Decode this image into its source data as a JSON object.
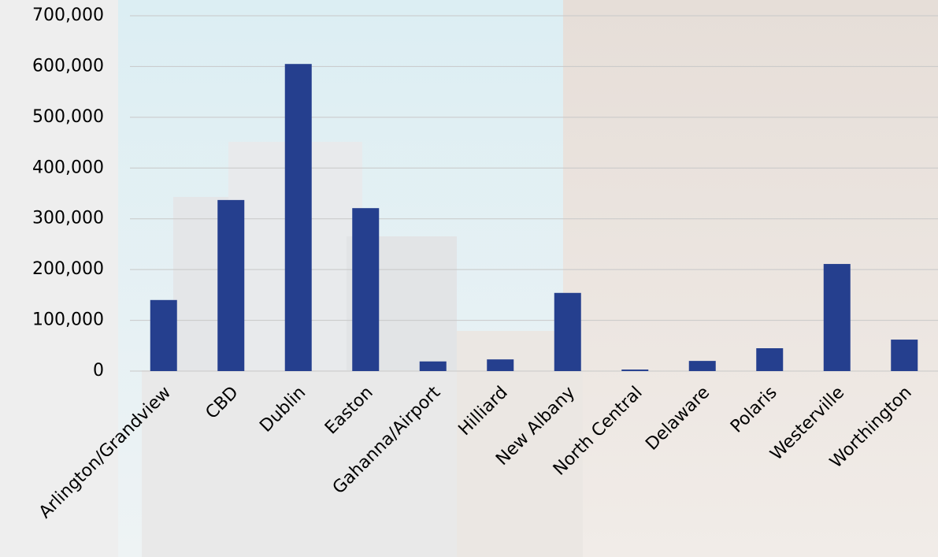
{
  "chart_data": {
    "type": "bar",
    "categories": [
      "Arlington/Grandview",
      "CBD",
      "Dublin",
      "Easton",
      "Gahanna/Airport",
      "Hilliard",
      "New Albany",
      "North Central",
      "Delaware",
      "Polaris",
      "Westerville",
      "Worthington"
    ],
    "values": [
      140000,
      337000,
      605000,
      321000,
      19000,
      23000,
      154000,
      3000,
      20000,
      45000,
      211000,
      62000
    ],
    "color": "#253f8e",
    "ylim": [
      0,
      700000
    ],
    "yticks": [
      0,
      {
        "value": 100000,
        "label": "100,000"
      },
      {
        "value": 200000,
        "label": "200,000"
      },
      {
        "value": 300000,
        "label": "300,000"
      },
      {
        "value": 400000,
        "label": "400,000"
      },
      {
        "value": 500000,
        "label": "500,000"
      },
      {
        "value": 600000,
        "label": "600,000"
      },
      {
        "value": 700000,
        "label": "700,000"
      }
    ],
    "grid": true
  }
}
